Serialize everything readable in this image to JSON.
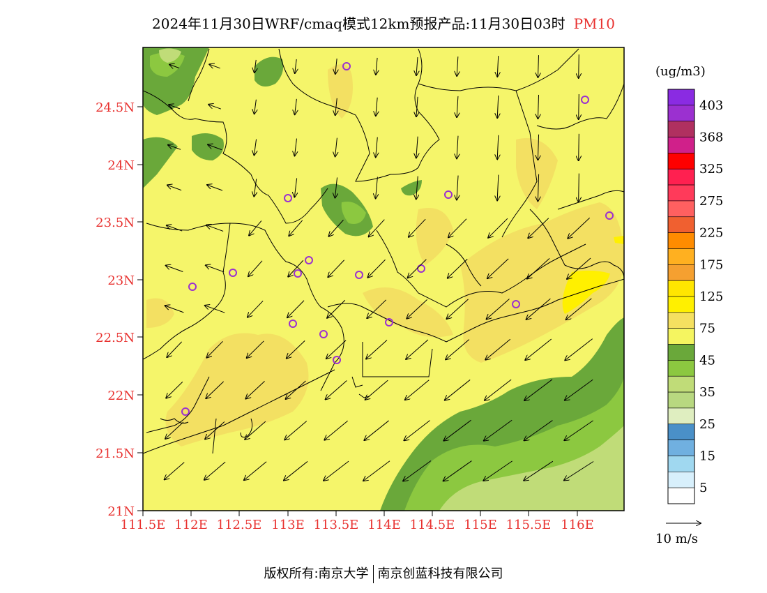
{
  "title": {
    "main": "2024年11月30日WRF/cmaq模式12km预报产品:11月30日03时",
    "pollutant": "PM10"
  },
  "axes": {
    "lat_labels": [
      "24.5N",
      "24N",
      "23.5N",
      "23N",
      "22.5N",
      "22N",
      "21.5N",
      "21N"
    ],
    "lon_labels": [
      "111.5E",
      "112E",
      "112.5E",
      "113E",
      "113.5E",
      "114E",
      "114.5E",
      "115E",
      "115.5E",
      "116E"
    ],
    "label_color": "#e8312f"
  },
  "colorbar": {
    "unit": "(ug/m3)",
    "labels": [
      "403",
      "368",
      "325",
      "275",
      "225",
      "175",
      "125",
      "75",
      "45",
      "35",
      "25",
      "15",
      "5"
    ],
    "colors": [
      "#8a2be2",
      "#9b30d0",
      "#b03060",
      "#d0208a",
      "#ff0000",
      "#ff2050",
      "#ff3a5a",
      "#ff6060",
      "#f06030",
      "#ff8c00",
      "#ffb020",
      "#f5a030",
      "#ffe600",
      "#fff000",
      "#f5e060",
      "#f5f560",
      "#6aa83a",
      "#8cc840",
      "#c0dc78",
      "#b8d880",
      "#dfeec0",
      "#4a90c8",
      "#70b0e0",
      "#a0d8f0",
      "#d8f0fc",
      "#ffffff"
    ]
  },
  "wind_scale": {
    "label": "10 m/s"
  },
  "map_colors": {
    "background": "#f5f56a",
    "light_orange": "#f3e062",
    "yellow": "#fff000",
    "dark_green": "#6aa83a",
    "mid_green": "#8cc840",
    "light_green": "#c0dc78"
  },
  "footer": {
    "left": "版权所有:南京大学",
    "right": "南京创蓝科技有限公司"
  }
}
